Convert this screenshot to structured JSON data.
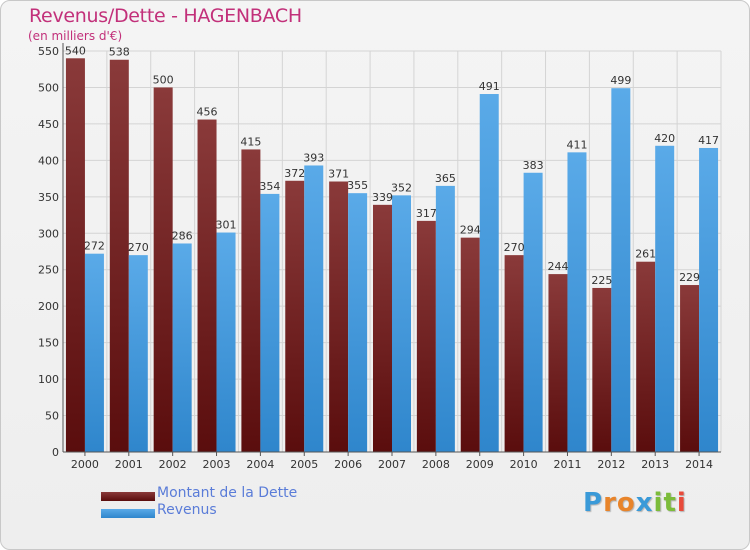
{
  "title": "Revenus/Dette - HAGENBACH",
  "subtitle": "(en milliers d'€)",
  "colors": {
    "debt_top": "#8a3a3a",
    "debt_bottom": "#5a0d0d",
    "revenue_top": "#5aaae8",
    "revenue_bottom": "#2f86cc",
    "title": "#c2307a",
    "legend_text": "#5a7cd8"
  },
  "legend": {
    "debt_label": "Montant de la Dette",
    "revenue_label": "Revenus"
  },
  "logo": {
    "letters": [
      "P",
      "r",
      "o",
      "x",
      "i",
      "t",
      "i"
    ],
    "colors": [
      "#3a9ad8",
      "#e8842a",
      "#e8842a",
      "#3a9ad8",
      "#7cbc3a",
      "#7cbc3a",
      "#e84a3a"
    ]
  },
  "chart_data": {
    "type": "bar",
    "categories": [
      "2000",
      "2001",
      "2002",
      "2003",
      "2004",
      "2005",
      "2006",
      "2007",
      "2008",
      "2009",
      "2010",
      "2011",
      "2012",
      "2013",
      "2014"
    ],
    "series": [
      {
        "name": "Montant de la Dette",
        "values": [
          540,
          538,
          500,
          456,
          415,
          372,
          371,
          339,
          317,
          294,
          270,
          244,
          225,
          261,
          229
        ]
      },
      {
        "name": "Revenus",
        "values": [
          272,
          270,
          286,
          301,
          354,
          393,
          355,
          352,
          365,
          491,
          383,
          411,
          499,
          420,
          417
        ]
      }
    ],
    "ylim": [
      0,
      550
    ],
    "yticks": [
      0,
      50,
      100,
      150,
      200,
      250,
      300,
      350,
      400,
      450,
      500,
      550
    ],
    "grid": true,
    "legend_position": "bottom-left"
  }
}
